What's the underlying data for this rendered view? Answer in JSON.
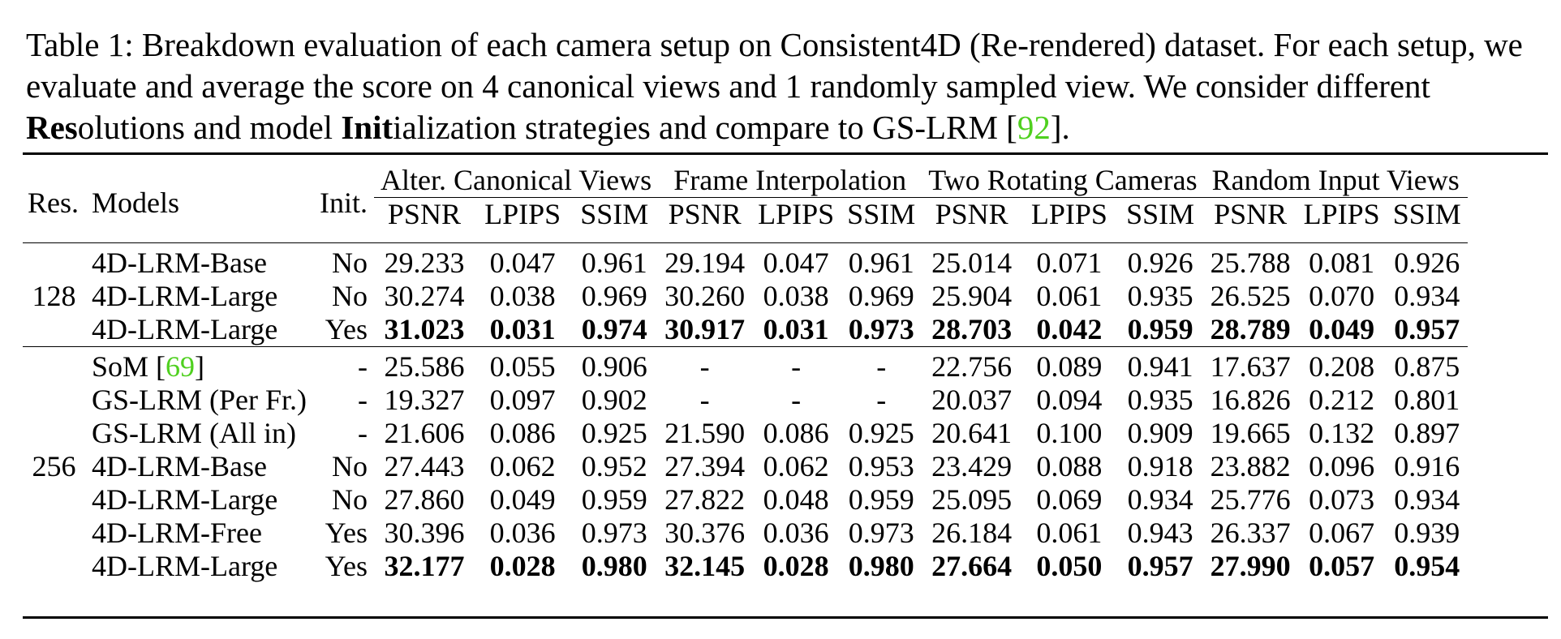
{
  "caption": {
    "prefix": "Table 1: Breakdown evaluation of each camera setup on Consistent4D (Re-rendered) dataset. For each setup, we evaluate and average the score on 4 canonical views and 1 randomly sampled view. We consider different ",
    "res_bold": "Res",
    "res_rest": "olutions and model ",
    "init_bold": "Init",
    "init_rest": "ialization strategies and compare to GS-LRM [",
    "cite": "92",
    "suffix": "]."
  },
  "header": {
    "res": "Res.",
    "models": "Models",
    "init": "Init.",
    "groups": [
      "Alter. Canonical Views",
      "Frame Interpolation",
      "Two Rotating Cameras",
      "Random Input Views"
    ],
    "metrics": [
      "PSNR",
      "LPIPS",
      "SSIM"
    ]
  },
  "sections": [
    {
      "res": "128",
      "rows": [
        {
          "model": "4D-LRM-Base",
          "init": "No",
          "values": [
            "29.233",
            "0.047",
            "0.961",
            "29.194",
            "0.047",
            "0.961",
            "25.014",
            "0.071",
            "0.926",
            "25.788",
            "0.081",
            "0.926"
          ]
        },
        {
          "model": "4D-LRM-Large",
          "init": "No",
          "values": [
            "30.274",
            "0.038",
            "0.969",
            "30.260",
            "0.038",
            "0.969",
            "25.904",
            "0.061",
            "0.935",
            "26.525",
            "0.070",
            "0.934"
          ]
        },
        {
          "model": "4D-LRM-Large",
          "init": "Yes",
          "bold": true,
          "values": [
            "31.023",
            "0.031",
            "0.974",
            "30.917",
            "0.031",
            "0.973",
            "28.703",
            "0.042",
            "0.959",
            "28.789",
            "0.049",
            "0.957"
          ]
        }
      ]
    },
    {
      "res": "256",
      "rows": [
        {
          "model": "SoM [",
          "cite": "69",
          "model_suffix": "]",
          "init": "-",
          "values": [
            "25.586",
            "0.055",
            "0.906",
            "-",
            "-",
            "-",
            "22.756",
            "0.089",
            "0.941",
            "17.637",
            "0.208",
            "0.875"
          ]
        },
        {
          "model": "GS-LRM (Per Fr.)",
          "init": "-",
          "values": [
            "19.327",
            "0.097",
            "0.902",
            "-",
            "-",
            "-",
            "20.037",
            "0.094",
            "0.935",
            "16.826",
            "0.212",
            "0.801"
          ]
        },
        {
          "model": "GS-LRM (All in)",
          "init": "-",
          "values": [
            "21.606",
            "0.086",
            "0.925",
            "21.590",
            "0.086",
            "0.925",
            "20.641",
            "0.100",
            "0.909",
            "19.665",
            "0.132",
            "0.897"
          ]
        },
        {
          "model": "4D-LRM-Base",
          "init": "No",
          "values": [
            "27.443",
            "0.062",
            "0.952",
            "27.394",
            "0.062",
            "0.953",
            "23.429",
            "0.088",
            "0.918",
            "23.882",
            "0.096",
            "0.916"
          ]
        },
        {
          "model": "4D-LRM-Large",
          "init": "No",
          "values": [
            "27.860",
            "0.049",
            "0.959",
            "27.822",
            "0.048",
            "0.959",
            "25.095",
            "0.069",
            "0.934",
            "25.776",
            "0.073",
            "0.934"
          ]
        },
        {
          "model": "4D-LRM-Free",
          "init": "Yes",
          "values": [
            "30.396",
            "0.036",
            "0.973",
            "30.376",
            "0.036",
            "0.973",
            "26.184",
            "0.061",
            "0.943",
            "26.337",
            "0.067",
            "0.939"
          ]
        },
        {
          "model": "4D-LRM-Large",
          "init": "Yes",
          "bold": true,
          "values": [
            "32.177",
            "0.028",
            "0.980",
            "32.145",
            "0.028",
            "0.980",
            "27.664",
            "0.050",
            "0.957",
            "27.990",
            "0.057",
            "0.954"
          ]
        }
      ]
    }
  ]
}
